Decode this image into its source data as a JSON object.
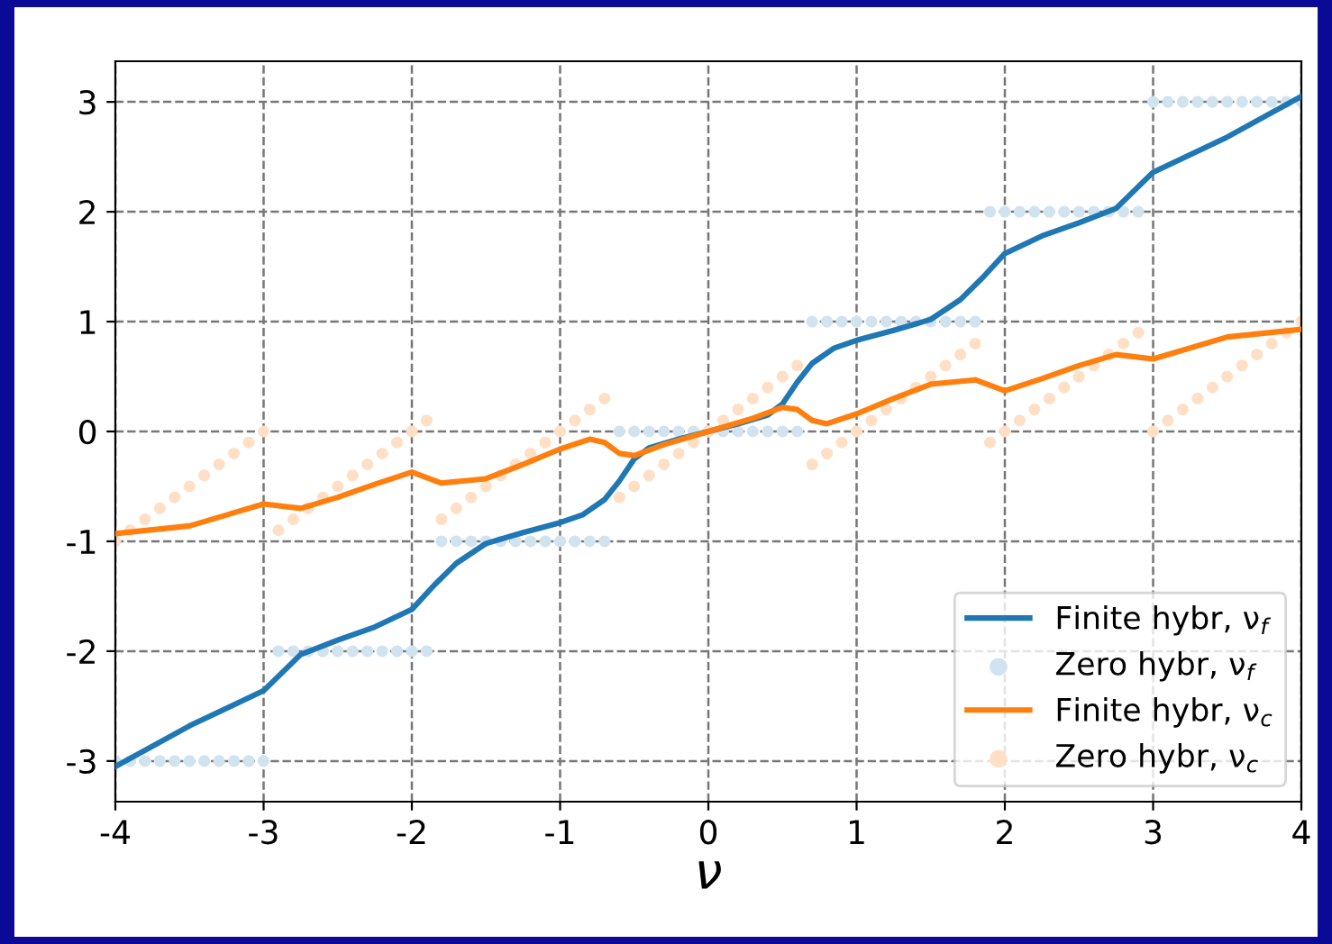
{
  "chart_data": {
    "type": "line",
    "xlabel": "ν",
    "xlim": [
      -4,
      4
    ],
    "ylim": [
      -3.37,
      3.37
    ],
    "xticks": [
      -4,
      -3,
      -2,
      -1,
      0,
      1,
      2,
      3,
      4
    ],
    "yticks": [
      -3,
      -2,
      -1,
      0,
      1,
      2,
      3
    ],
    "grid": true,
    "legend": "bottom right",
    "line_style": "solid",
    "series": [
      {
        "name": "Finite hybr, ν$_{f}$",
        "color": "#1f77b4",
        "x": [
          -4,
          -3.5,
          -3,
          -2.75,
          -2.5,
          -2.25,
          -2,
          -1.85,
          -1.7,
          -1.5,
          -1.25,
          -1,
          -0.85,
          -0.7,
          -0.6,
          -0.5,
          -0.4,
          -0.2,
          0,
          0.2,
          0.4,
          0.5,
          0.6,
          0.7,
          0.85,
          1,
          1.25,
          1.5,
          1.7,
          1.85,
          2,
          2.25,
          2.5,
          2.75,
          3,
          3.5,
          4
        ],
        "values": [
          -3.05,
          -2.68,
          -2.36,
          -2.03,
          -1.9,
          -1.78,
          -1.62,
          -1.4,
          -1.2,
          -1.02,
          -0.92,
          -0.83,
          -0.76,
          -0.62,
          -0.45,
          -0.25,
          -0.15,
          -0.07,
          0,
          0.07,
          0.15,
          0.25,
          0.45,
          0.62,
          0.76,
          0.83,
          0.92,
          1.02,
          1.2,
          1.4,
          1.62,
          1.78,
          1.9,
          2.03,
          2.36,
          2.68,
          3.05
        ]
      },
      {
        "name": "Zero hybr, ν$_{f}$",
        "type": "scatter",
        "marker": "circle",
        "color": "#d2e3f0",
        "x": [
          -4,
          -3.9,
          -3.8,
          -3.7,
          -3.6,
          -3.5,
          -3.4,
          -3.3,
          -3.2,
          -3.1,
          -3,
          -2.9,
          -2.8,
          -2.7,
          -2.6,
          -2.5,
          -2.4,
          -2.3,
          -2.2,
          -2.1,
          -2,
          -1.9,
          -1.8,
          -1.7,
          -1.6,
          -1.5,
          -1.4,
          -1.3,
          -1.2,
          -1.1,
          -1,
          -0.9,
          -0.8,
          -0.7,
          -0.6,
          -0.5,
          -0.4,
          -0.3,
          -0.2,
          -0.1,
          0,
          0.1,
          0.2,
          0.3,
          0.4,
          0.5,
          0.6,
          0.7,
          0.8,
          0.9,
          1,
          1.1,
          1.2,
          1.3,
          1.4,
          1.5,
          1.6,
          1.7,
          1.8,
          1.9,
          2,
          2.1,
          2.2,
          2.3,
          2.4,
          2.5,
          2.6,
          2.7,
          2.8,
          2.9,
          3,
          3.1,
          3.2,
          3.3,
          3.4,
          3.5,
          3.6,
          3.7,
          3.8,
          3.9,
          4
        ],
        "values": [
          -3,
          -3,
          -3,
          -3,
          -3,
          -3,
          -3,
          -3,
          -3,
          -3,
          -3,
          -2,
          -2,
          -2,
          -2,
          -2,
          -2,
          -2,
          -2,
          -2,
          -2,
          -2,
          -1,
          -1,
          -1,
          -1,
          -1,
          -1,
          -1,
          -1,
          -1,
          -1,
          -1,
          -1,
          0,
          0,
          0,
          0,
          0,
          0,
          0,
          0,
          0,
          0,
          0,
          0,
          0,
          1,
          1,
          1,
          1,
          1,
          1,
          1,
          1,
          1,
          1,
          1,
          1,
          2,
          2,
          2,
          2,
          2,
          2,
          2,
          2,
          2,
          2,
          2,
          3,
          3,
          3,
          3,
          3,
          3,
          3,
          3,
          3,
          3,
          3
        ]
      },
      {
        "name": "Finite hybr, ν$_{c}$",
        "color": "#ff7f0e",
        "x": [
          -4,
          -3.5,
          -3,
          -2.75,
          -2.5,
          -2.25,
          -2,
          -1.8,
          -1.5,
          -1.25,
          -1,
          -0.8,
          -0.7,
          -0.6,
          -0.5,
          -0.3,
          0,
          0.3,
          0.5,
          0.6,
          0.7,
          0.8,
          1,
          1.25,
          1.5,
          1.8,
          2,
          2.25,
          2.5,
          2.75,
          3,
          3.5,
          4
        ],
        "values": [
          -0.93,
          -0.86,
          -0.66,
          -0.7,
          -0.6,
          -0.48,
          -0.37,
          -0.47,
          -0.43,
          -0.3,
          -0.16,
          -0.07,
          -0.1,
          -0.2,
          -0.22,
          -0.12,
          0,
          0.12,
          0.22,
          0.2,
          0.1,
          0.07,
          0.16,
          0.3,
          0.43,
          0.47,
          0.37,
          0.48,
          0.6,
          0.7,
          0.66,
          0.86,
          0.93
        ]
      },
      {
        "name": "Zero hybr, ν$_{c}$",
        "type": "scatter",
        "marker": "circle",
        "color": "#ffe0c6",
        "x": [
          -4,
          -3.9,
          -3.8,
          -3.7,
          -3.6,
          -3.5,
          -3.4,
          -3.3,
          -3.2,
          -3.1,
          -3,
          -2.9,
          -2.8,
          -2.7,
          -2.6,
          -2.5,
          -2.4,
          -2.3,
          -2.2,
          -2.1,
          -2,
          -1.9,
          -1.8,
          -1.7,
          -1.6,
          -1.5,
          -1.4,
          -1.3,
          -1.2,
          -1.1,
          -1,
          -0.9,
          -0.8,
          -0.7,
          -0.6,
          -0.5,
          -0.4,
          -0.3,
          -0.2,
          -0.1,
          0,
          0.1,
          0.2,
          0.3,
          0.4,
          0.5,
          0.6,
          0.7,
          0.8,
          0.9,
          1,
          1.1,
          1.2,
          1.3,
          1.4,
          1.5,
          1.6,
          1.7,
          1.8,
          1.9,
          2,
          2.1,
          2.2,
          2.3,
          2.4,
          2.5,
          2.6,
          2.7,
          2.8,
          2.9,
          3,
          3.1,
          3.2,
          3.3,
          3.4,
          3.5,
          3.6,
          3.7,
          3.8,
          3.9,
          4
        ],
        "values": [
          -1,
          -0.9,
          -0.8,
          -0.7,
          -0.6,
          -0.5,
          -0.4,
          -0.3,
          -0.2,
          -0.1,
          0,
          -0.9,
          -0.8,
          -0.7,
          -0.6,
          -0.5,
          -0.4,
          -0.3,
          -0.2,
          -0.1,
          0,
          0.1,
          -0.8,
          -0.7,
          -0.6,
          -0.5,
          -0.4,
          -0.3,
          -0.2,
          -0.1,
          0,
          0.1,
          0.2,
          0.3,
          -0.6,
          -0.5,
          -0.4,
          -0.3,
          -0.2,
          -0.1,
          0,
          0.1,
          0.2,
          0.3,
          0.4,
          0.5,
          0.6,
          -0.3,
          -0.2,
          -0.1,
          0,
          0.1,
          0.2,
          0.3,
          0.4,
          0.5,
          0.6,
          0.7,
          0.8,
          -0.1,
          0,
          0.1,
          0.2,
          0.3,
          0.4,
          0.5,
          0.6,
          0.7,
          0.8,
          0.9,
          0,
          0.1,
          0.2,
          0.3,
          0.4,
          0.5,
          0.6,
          0.7,
          0.8,
          0.9,
          1
        ]
      }
    ]
  }
}
